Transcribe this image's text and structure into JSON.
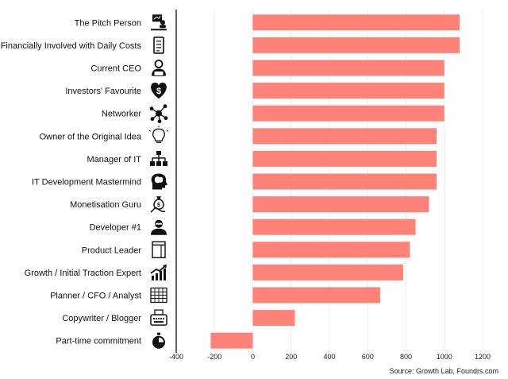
{
  "chart_data": {
    "type": "bar",
    "orientation": "horizontal",
    "title": "",
    "xlabel": "",
    "ylabel": "",
    "categories": [
      "The Pitch Person",
      "Financially Involved with Daily Costs",
      "Current CEO",
      "Investors' Favourite",
      "Networker",
      "Owner of the Original Idea",
      "Manager of IT",
      "IT Development Mastermind",
      "Monetisation Guru",
      "Developer #1",
      "Product Leader",
      "Growth / Initial Traction Expert",
      "Planner / CFO / Analyst",
      "Copywriter / Blogger",
      "Part-time commitment"
    ],
    "icons": [
      "presenter-icon",
      "receipt-icon",
      "ceo-person-icon",
      "heart-dollar-icon",
      "network-nodes-icon",
      "lightbulb-icon",
      "org-chart-icon",
      "brain-head-icon",
      "money-bag-hand-icon",
      "developer-person-icon",
      "document-layout-icon",
      "growth-chart-icon",
      "spreadsheet-icon",
      "typewriter-icon",
      "stopwatch-icon"
    ],
    "values": [
      1080,
      1080,
      1000,
      1000,
      1000,
      960,
      960,
      960,
      920,
      850,
      820,
      785,
      665,
      220,
      -220
    ],
    "xlim": [
      -400,
      1200
    ],
    "xticks": [
      "-400",
      "-200",
      "0",
      "200",
      "400",
      "600",
      "800",
      "1000",
      "1200"
    ],
    "grid": true,
    "bar_color": "#FF8278",
    "source": "Source: Growth Lab, Foundrs.com"
  }
}
